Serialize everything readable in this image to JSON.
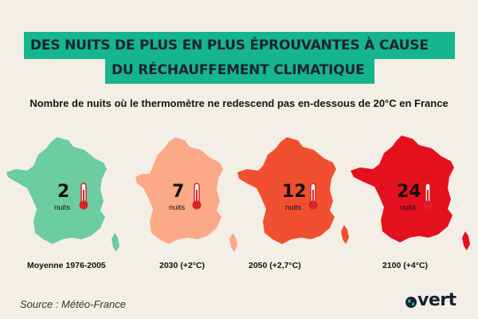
{
  "header": {
    "title_line_1": "DES NUITS DE PLUS EN PLUS ÉPROUVANTES À CAUSE",
    "title_line_2": "DU RÉCHAUFFEMENT CLIMATIQUE",
    "subtitle": "Nombre de nuits où le thermomètre ne redescend pas en-dessous de 20°C en France"
  },
  "maps": [
    {
      "value": "2",
      "unit": "nuits",
      "label": "Moyenne 1976-2005",
      "color": "#6ccda1"
    },
    {
      "value": "7",
      "unit": "nuits",
      "label": "2030 (+2°C)",
      "color": "#fba986"
    },
    {
      "value": "12",
      "unit": "nuits",
      "label": "2050 (+2,7°C)",
      "color": "#f0502f"
    },
    {
      "value": "24",
      "unit": "nuits",
      "label": "2100 (+4°C)",
      "color": "#e5101d"
    }
  ],
  "footer": {
    "source": "Source : Météo-France",
    "brand": "vert"
  },
  "colors": {
    "background": "#f3efe6",
    "title_bg": "#15b58d",
    "title_text": "#1b2234",
    "thermometer": "#d9222a"
  }
}
